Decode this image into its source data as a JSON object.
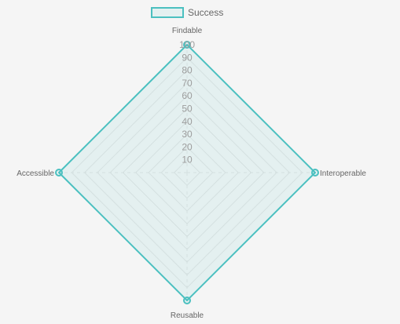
{
  "chart_data": {
    "type": "radar",
    "labels": [
      "Findable",
      "Interoperable",
      "Reusable",
      "Accessible"
    ],
    "series": [
      {
        "name": "Success",
        "values": [
          100,
          100,
          100,
          100
        ]
      }
    ],
    "r_range": [
      0,
      100
    ],
    "ticks": [
      "10",
      "20",
      "30",
      "40",
      "50",
      "60",
      "70",
      "80",
      "90",
      "100"
    ],
    "grid": true,
    "legend_position": "top",
    "colors": {
      "series_stroke": "#4bc0c0",
      "series_fill": "rgba(75,192,192,0.1)",
      "grid": "#e4e4e4",
      "tick_text": "#9e9e9e",
      "label_text": "#666666",
      "background": "#f5f5f5"
    }
  }
}
